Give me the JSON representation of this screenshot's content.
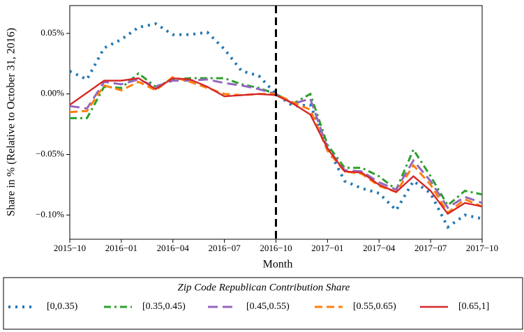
{
  "chart_data": {
    "type": "line",
    "x": [
      "2015-10",
      "2015-11",
      "2015-12",
      "2016-01",
      "2016-02",
      "2016-03",
      "2016-04",
      "2016-05",
      "2016-06",
      "2016-07",
      "2016-08",
      "2016-09",
      "2016-10",
      "2016-11",
      "2016-12",
      "2017-01",
      "2017-02",
      "2017-03",
      "2017-04",
      "2017-05",
      "2017-06",
      "2017-07",
      "2017-08",
      "2017-09",
      "2017-10"
    ],
    "xlabel": "Month",
    "ylabel": "Share in % (Relative to October 31, 2016)",
    "ylim": [
      -0.12,
      0.073
    ],
    "yticks": [
      {
        "value": 0.05,
        "label": "0.05%"
      },
      {
        "value": 0,
        "label": "0.00%"
      },
      {
        "value": -0.05,
        "label": "−0.05%"
      },
      {
        "value": -0.1,
        "label": "−0.10%"
      }
    ],
    "xticks": [
      {
        "value": "2015-10",
        "label": "2015−10"
      },
      {
        "value": "2016-01",
        "label": "2016−01"
      },
      {
        "value": "2016-04",
        "label": "2016−04"
      },
      {
        "value": "2016-07",
        "label": "2016−07"
      },
      {
        "value": "2016-10",
        "label": "2016−10"
      },
      {
        "value": "2017-01",
        "label": "2017−01"
      },
      {
        "value": "2017-04",
        "label": "2017−04"
      },
      {
        "value": "2017-07",
        "label": "2017−07"
      },
      {
        "value": "2017-10",
        "label": "2017−10"
      }
    ],
    "vline": "2016-10",
    "legend_title": "Zip Code Republican Contribution Share",
    "series": [
      {
        "name": "[0,0.35)",
        "color": "#1f77b4",
        "style": "dotted",
        "values": [
          0.0188,
          0.012,
          0.038,
          0.045,
          0.055,
          0.058,
          0.049,
          0.049,
          0.051,
          0.037,
          0.019,
          0.015,
          0.0,
          -0.01,
          -0.009,
          -0.044,
          -0.072,
          -0.078,
          -0.082,
          -0.096,
          -0.072,
          -0.082,
          -0.11,
          -0.1,
          -0.103
        ]
      },
      {
        "name": "[0.35,0.45)",
        "color": "#2ca02c",
        "style": "dashdot",
        "values": [
          -0.02,
          -0.02,
          0.006,
          0.005,
          0.017,
          0.006,
          0.012,
          0.013,
          0.013,
          0.013,
          0.008,
          0.005,
          0.0,
          -0.008,
          0.0,
          -0.042,
          -0.061,
          -0.061,
          -0.068,
          -0.079,
          -0.046,
          -0.068,
          -0.092,
          -0.08,
          -0.083
        ]
      },
      {
        "name": "[0.45,0.55)",
        "color": "#9467bd",
        "style": "longdash",
        "values": [
          -0.01,
          -0.012,
          0.01,
          0.008,
          0.012,
          0.006,
          0.011,
          0.011,
          0.012,
          0.009,
          0.007,
          0.004,
          0.0,
          -0.008,
          -0.004,
          -0.045,
          -0.063,
          -0.064,
          -0.073,
          -0.079,
          -0.055,
          -0.072,
          -0.094,
          -0.085,
          -0.09
        ]
      },
      {
        "name": "[0.55,0.65)",
        "color": "#ff7f0e",
        "style": "dashed",
        "values": [
          -0.015,
          -0.014,
          0.007,
          0.003,
          0.01,
          0.003,
          0.014,
          0.01,
          0.005,
          0.0,
          -0.001,
          0.0,
          0.0,
          -0.007,
          -0.013,
          -0.047,
          -0.064,
          -0.066,
          -0.076,
          -0.081,
          -0.059,
          -0.075,
          -0.098,
          -0.087,
          -0.093
        ]
      },
      {
        "name": "[0.65,1]",
        "color": "#d62728",
        "style": "solid",
        "values": [
          -0.009,
          0.001,
          0.011,
          0.011,
          0.013,
          0.004,
          0.013,
          0.012,
          0.006,
          -0.002,
          -0.001,
          0.0,
          -0.001,
          -0.008,
          -0.017,
          -0.045,
          -0.064,
          -0.065,
          -0.075,
          -0.081,
          -0.068,
          -0.08,
          -0.099,
          -0.09,
          -0.093
        ]
      }
    ]
  }
}
